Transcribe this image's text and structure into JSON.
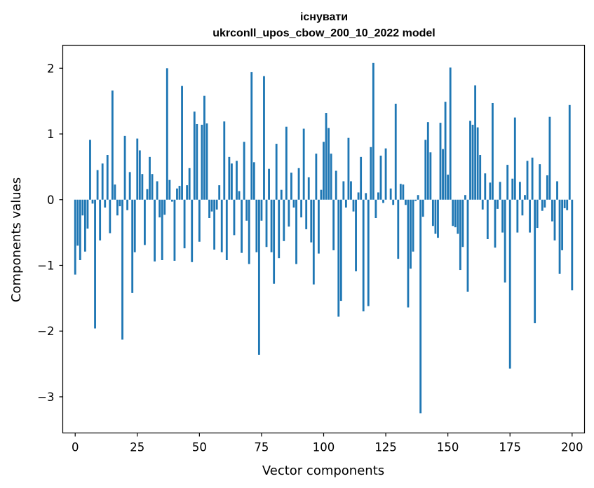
{
  "chart_data": {
    "type": "bar",
    "title_line1": "існувати",
    "title_line2": "ukrconll_upos_cbow_200_10_2022 model",
    "xlabel": "Vector components",
    "ylabel": "Components values",
    "xlim": [
      -5,
      205
    ],
    "ylim": [
      -3.55,
      2.35
    ],
    "xticks": [
      0,
      25,
      50,
      75,
      100,
      125,
      150,
      175,
      200
    ],
    "xtick_labels": [
      "0",
      "25",
      "50",
      "75",
      "100",
      "125",
      "150",
      "175",
      "200"
    ],
    "yticks": [
      -3,
      -2,
      -1,
      0,
      1,
      2
    ],
    "ytick_labels": [
      "−3",
      "−2",
      "−1",
      "0",
      "1",
      "2"
    ],
    "bar_color": "#1f77b4",
    "grid": false,
    "values": [
      -1.14,
      -0.7,
      -0.92,
      -0.24,
      -0.79,
      -0.44,
      0.91,
      -0.06,
      -1.96,
      0.45,
      -0.62,
      0.55,
      -0.12,
      0.68,
      -0.51,
      1.66,
      0.23,
      -0.24,
      -0.1,
      -2.13,
      0.97,
      -0.16,
      0.42,
      -1.42,
      -0.8,
      0.93,
      0.75,
      0.39,
      -0.69,
      0.16,
      0.65,
      0.39,
      -0.94,
      0.28,
      -0.27,
      -0.92,
      -0.23,
      2.0,
      0.3,
      -0.03,
      -0.93,
      0.17,
      0.21,
      1.73,
      -0.74,
      0.22,
      0.48,
      -0.95,
      1.34,
      1.15,
      -0.64,
      1.14,
      1.58,
      1.16,
      -0.28,
      -0.18,
      -0.76,
      -0.15,
      0.22,
      -0.8,
      1.19,
      -0.92,
      0.65,
      0.55,
      -0.54,
      0.59,
      0.13,
      -0.81,
      0.88,
      -0.32,
      -0.98,
      1.94,
      0.57,
      -0.8,
      -2.36,
      -0.32,
      1.88,
      -0.72,
      0.47,
      -0.8,
      -1.28,
      0.85,
      -0.89,
      0.15,
      -0.63,
      1.11,
      -0.41,
      0.41,
      -0.12,
      -0.98,
      0.48,
      -0.27,
      1.08,
      -0.45,
      0.34,
      -0.65,
      -1.29,
      0.7,
      -0.82,
      0.15,
      0.88,
      1.32,
      1.09,
      0.7,
      -0.77,
      0.44,
      -1.78,
      -1.54,
      0.28,
      -0.12,
      0.94,
      0.28,
      -0.18,
      -1.09,
      0.11,
      0.65,
      -1.7,
      0.1,
      -1.62,
      0.8,
      2.08,
      -0.28,
      0.11,
      0.67,
      -0.05,
      0.78,
      0.0,
      0.17,
      -0.08,
      1.46,
      -0.9,
      0.24,
      0.23,
      -0.08,
      -1.64,
      -1.05,
      -0.79,
      -0.02,
      0.07,
      -3.25,
      -0.26,
      0.91,
      1.18,
      0.72,
      -0.4,
      -0.52,
      -0.58,
      1.17,
      0.77,
      1.49,
      0.38,
      2.01,
      -0.4,
      -0.42,
      -0.52,
      -1.07,
      -0.72,
      0.07,
      -1.4,
      1.2,
      1.14,
      1.74,
      1.1,
      0.68,
      -0.15,
      0.4,
      -0.6,
      0.26,
      1.47,
      -0.73,
      -0.14,
      0.27,
      -0.5,
      -1.26,
      0.53,
      -2.57,
      0.32,
      1.25,
      -0.5,
      0.27,
      -0.24,
      0.07,
      0.59,
      -0.5,
      0.64,
      -1.88,
      -0.43,
      0.54,
      -0.17,
      -0.12,
      0.37,
      1.26,
      -0.33,
      -0.62,
      0.28,
      -1.13,
      -0.77,
      -0.13,
      -0.16,
      1.44,
      -1.38
    ]
  }
}
